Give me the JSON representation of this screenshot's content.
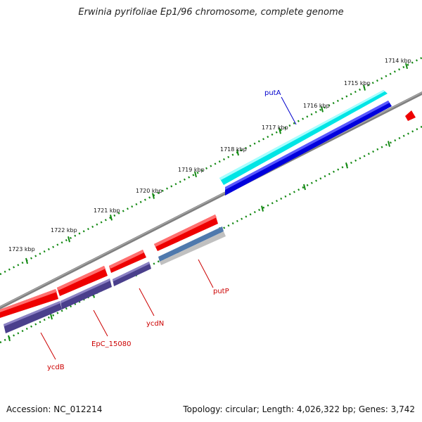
{
  "title": "Erwinia pyrifoliae Ep1/96 chromosome, complete genome",
  "footer": {
    "accession": "Accession: NC_012214",
    "summary": "Topology: circular; Length: 4,026,322 bp; Genes: 3,742"
  },
  "colors": {
    "backbone": "#808080",
    "tick": "#118811",
    "forward_cds": "#00e5e5",
    "forward_gene": "#0000dd",
    "reverse_cds": "#ee0000",
    "reverse_gene": "#4a3f8c",
    "label_forward": "#0000cc",
    "label_reverse": "#cc0000"
  },
  "kbp_labels": [
    "1714 kbp",
    "1715 kbp",
    "1716 kbp",
    "1717 kbp",
    "1718 kbp",
    "1719 kbp",
    "1720 kbp",
    "1721 kbp",
    "1722 kbp",
    "1723 kbp"
  ],
  "genes": [
    {
      "name": "putA",
      "strand": "forward"
    },
    {
      "name": "putP",
      "strand": "reverse"
    },
    {
      "name": "ycdN",
      "strand": "reverse"
    },
    {
      "name": "EpC_15080",
      "strand": "reverse"
    },
    {
      "name": "ycdB",
      "strand": "reverse"
    }
  ]
}
